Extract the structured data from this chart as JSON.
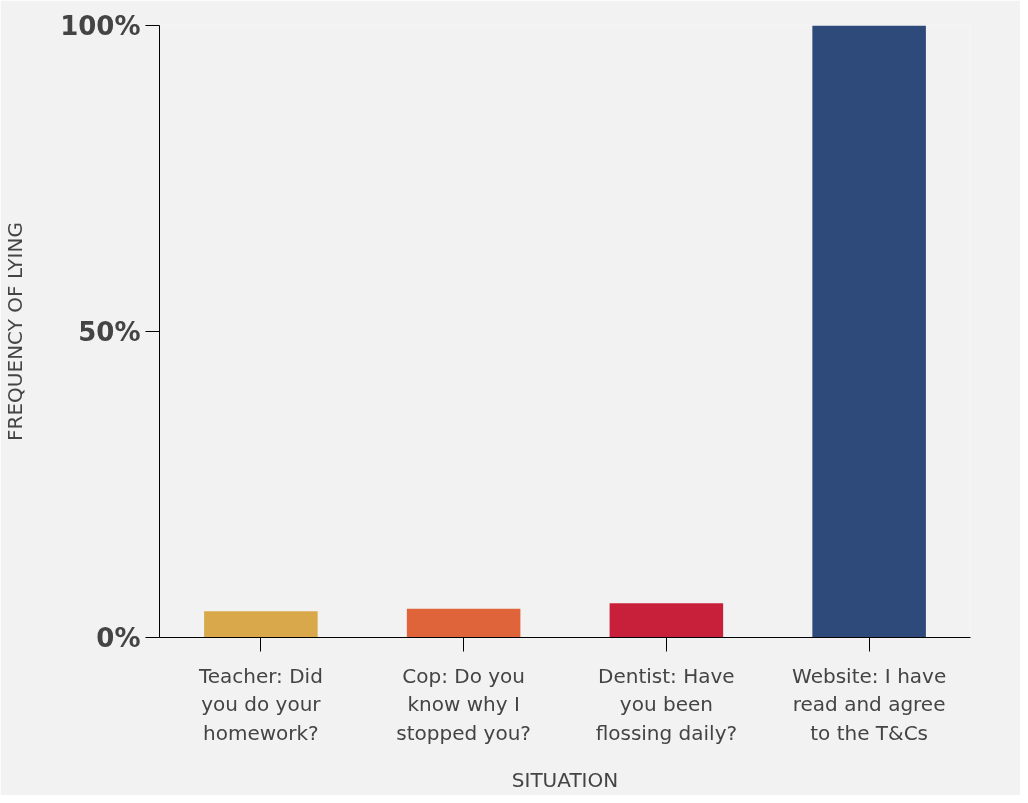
{
  "chart_data": {
    "type": "bar",
    "xlabel": "SITUATION",
    "ylabel": "FREQUENCY OF LYING",
    "categories": [
      "Teacher: Did\nyou do your\nhomework?",
      "Cop: Do you\nknow why I\nstopped you?",
      "Dentist: Have\nyou been\nflossing daily?",
      "Website: I have\nread and agree\nto the T&Cs"
    ],
    "values": [
      4.3,
      4.7,
      5.6,
      100
    ],
    "colors": [
      "#d9a84a",
      "#e0643a",
      "#c8203a",
      "#2e4a7a"
    ],
    "ylim": [
      0,
      100
    ],
    "yticks": [
      {
        "value": 0,
        "label": "0%"
      },
      {
        "value": 50,
        "label": "50%"
      },
      {
        "value": 100,
        "label": "100%"
      }
    ],
    "grid": false
  }
}
